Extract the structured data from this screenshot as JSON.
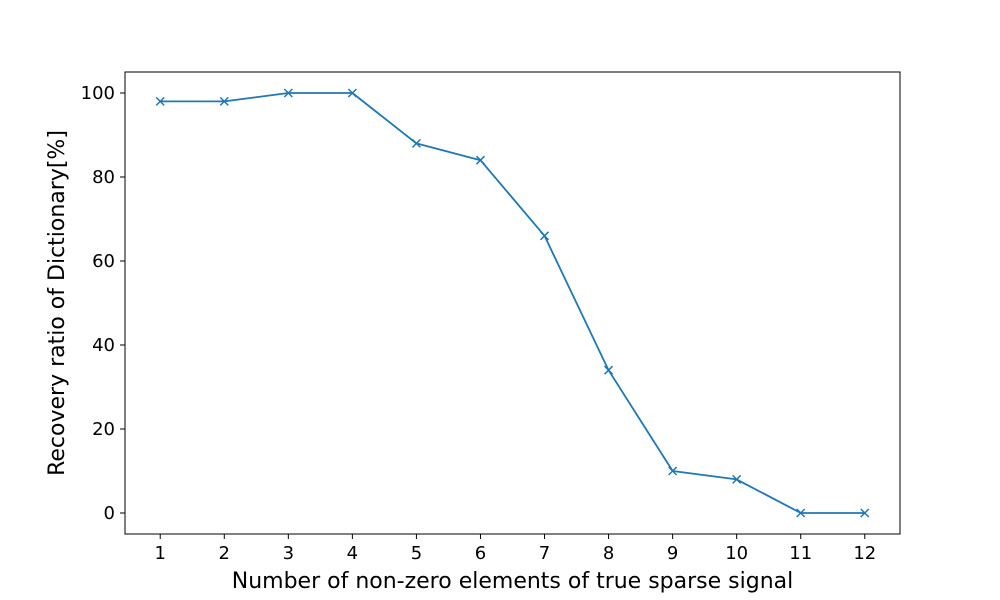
{
  "chart_data": {
    "type": "line",
    "title": "",
    "xlabel": "Number of non-zero elements of true sparse signal",
    "ylabel": "Recovery ratio of Dictionary[%]",
    "x": [
      1,
      2,
      3,
      4,
      5,
      6,
      7,
      8,
      9,
      10,
      11,
      12
    ],
    "series": [
      {
        "values": [
          98,
          98,
          100,
          100,
          88,
          84,
          66,
          34,
          10,
          8,
          0,
          0
        ],
        "color": "#1f77b4",
        "marker": "x"
      }
    ],
    "xlim": [
      0.45,
      12.55
    ],
    "ylim": [
      -5,
      105
    ],
    "xticks": [
      1,
      2,
      3,
      4,
      5,
      6,
      7,
      8,
      9,
      10,
      11,
      12
    ],
    "xtick_labels": [
      "1",
      "2",
      "3",
      "4",
      "5",
      "6",
      "7",
      "8",
      "9",
      "10",
      "11",
      "12"
    ],
    "yticks": [
      0,
      20,
      40,
      60,
      80,
      100
    ],
    "ytick_labels": [
      "0",
      "20",
      "40",
      "60",
      "80",
      "100"
    ],
    "grid": false,
    "legend": "none"
  }
}
